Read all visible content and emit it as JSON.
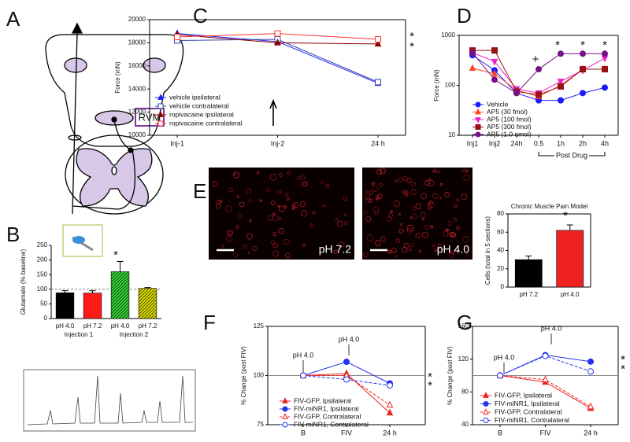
{
  "diagram": {
    "panel": "A",
    "label": "RVM"
  },
  "chart_data": [
    {
      "type": "bar",
      "panel": "B",
      "ylabel": "Glutamate (% baseline)",
      "categories": [
        "pH 4.0",
        "pH 7.2",
        "pH 4.0",
        "pH 7.2"
      ],
      "groups": [
        "Injection 1",
        "Injection 2"
      ],
      "values": [
        88,
        87,
        160,
        103
      ],
      "errors": [
        7,
        8,
        35,
        3
      ],
      "colors": [
        "#000000",
        "#ff1a1a",
        "#33cc33",
        "#d4d400"
      ],
      "hatched": [
        false,
        false,
        true,
        true
      ],
      "ylim": [
        0,
        250
      ],
      "yticks": [
        0,
        50,
        100,
        150,
        200,
        250
      ],
      "ref_line": 100,
      "annotations": [
        "*"
      ]
    },
    {
      "type": "line",
      "panel": "C",
      "ylabel": "Force (mN)",
      "categories": [
        "Inj-1",
        "Inj-2",
        "24 h"
      ],
      "ylim": [
        10000,
        20000
      ],
      "yticks": [
        10000,
        12000,
        14000,
        16000,
        18000,
        20000
      ],
      "annotations": [
        "*",
        "*"
      ],
      "series": [
        {
          "name": "vehicle ipsilateral",
          "color": "#1a1aff",
          "marker": "triangle",
          "filled": true,
          "values": [
            18800,
            18100,
            14500
          ]
        },
        {
          "name": "vehicle contralateral",
          "color": "#3344aa",
          "marker": "square",
          "filled": false,
          "values": [
            18200,
            18300,
            14600
          ]
        },
        {
          "name": "ropivacaine ipsilateral",
          "color": "#8b0000",
          "marker": "triangle",
          "filled": true,
          "values": [
            18700,
            18000,
            17900
          ]
        },
        {
          "name": "ropivacaine contralateral",
          "color": "#ff3333",
          "marker": "square",
          "filled": false,
          "values": [
            18500,
            18800,
            18300
          ]
        }
      ]
    },
    {
      "type": "line",
      "panel": "D",
      "ylabel": "Force (mN)",
      "log": true,
      "categories": [
        "Inj1",
        "Inj2",
        "24h",
        "0.5",
        "1h",
        "2h",
        "4h"
      ],
      "x_group_label": "Post Drug",
      "ylim": [
        10,
        1000
      ],
      "yticks": [
        10,
        100,
        1000
      ],
      "annotations": [
        "+",
        "*",
        "*",
        "*"
      ],
      "series": [
        {
          "name": "Vehicle",
          "color": "#1a1aff",
          "marker": "circle",
          "filled": true,
          "values": [
            400,
            200,
            70,
            50,
            50,
            70,
            90
          ]
        },
        {
          "name": "AP5 (30 fmol)",
          "color": "#ff4422",
          "marker": "triangle",
          "filled": true,
          "values": [
            220,
            170,
            80,
            60,
            100,
            210,
            210
          ]
        },
        {
          "name": "AP5 (100 fmol)",
          "color": "#ee22cc",
          "marker": "triangle-down",
          "filled": true,
          "values": [
            450,
            300,
            85,
            70,
            120,
            200,
            350
          ]
        },
        {
          "name": "AP5 (300 fmol)",
          "color": "#991111",
          "marker": "square",
          "filled": true,
          "values": [
            500,
            500,
            75,
            65,
            95,
            210,
            210
          ]
        },
        {
          "name": "AP5 (1.0 nmol)",
          "color": "#771188",
          "marker": "circle",
          "filled": true,
          "values": [
            450,
            130,
            70,
            210,
            430,
            430,
            430
          ]
        }
      ]
    },
    {
      "type": "bar",
      "panel": "E",
      "title": "Chronic Muscle Pain Model",
      "ylabel": "Cells (total in 5 sections)",
      "image_labels": [
        "pH 7.2",
        "pH 4.0"
      ],
      "categories": [
        "pH 7.2",
        "pH 4.0"
      ],
      "values": [
        30,
        62
      ],
      "errors": [
        4,
        6
      ],
      "colors": [
        "#000000",
        "#ee2222"
      ],
      "hatched": [
        false,
        false
      ],
      "ylim": [
        0,
        80
      ],
      "yticks": [
        0,
        20,
        40,
        60,
        80
      ],
      "annotations": [
        "*"
      ]
    },
    {
      "type": "line",
      "panel": "F",
      "ylabel": "% Change (post FIV)",
      "categories": [
        "B",
        "FIV",
        "24 h"
      ],
      "ylim": [
        75,
        125
      ],
      "yticks": [
        75,
        100,
        125
      ],
      "ref_line": 100,
      "annotations": [
        "pH 4.0",
        "pH 4.0",
        "*",
        "*"
      ],
      "series": [
        {
          "name": "FIV-GFP, Ipsilateral",
          "color": "#ee2222",
          "marker": "triangle",
          "filled": true,
          "values": [
            100,
            101,
            81
          ]
        },
        {
          "name": "FIV-miNR1, Ipsilateral",
          "color": "#2233ee",
          "marker": "circle",
          "filled": true,
          "values": [
            100,
            107,
            96
          ]
        },
        {
          "name": "FIV-GFP, Contralateral",
          "color": "#ee2222",
          "marker": "triangle",
          "filled": false,
          "dashed": true,
          "values": [
            100,
            100,
            85
          ]
        },
        {
          "name": "FIV-miNR1, Contralateral",
          "color": "#2233ee",
          "marker": "circle",
          "filled": false,
          "dashed": true,
          "values": [
            100,
            98,
            95
          ]
        }
      ]
    },
    {
      "type": "line",
      "panel": "G",
      "ylabel": "% Change (post FIV)",
      "categories": [
        "B",
        "FIV",
        "24 h"
      ],
      "ylim": [
        40,
        160
      ],
      "yticks": [
        40,
        80,
        120,
        160
      ],
      "ref_line": 100,
      "annotations": [
        "pH 4.0",
        "pH 4.0",
        "*",
        "*"
      ],
      "series": [
        {
          "name": "FIV-GFP, Ipsilateral",
          "color": "#ee2222",
          "marker": "triangle",
          "filled": true,
          "values": [
            100,
            92,
            60
          ]
        },
        {
          "name": "FIV-miNR1, Ipsilateral",
          "color": "#2233ee",
          "marker": "circle",
          "filled": true,
          "values": [
            100,
            125,
            117
          ]
        },
        {
          "name": "FIV-GFP, Contralateral",
          "color": "#ee2222",
          "marker": "triangle",
          "filled": false,
          "dashed": true,
          "values": [
            100,
            95,
            62
          ]
        },
        {
          "name": "FIV-miNR1, Contralateral",
          "color": "#2233ee",
          "marker": "circle",
          "filled": false,
          "dashed": true,
          "values": [
            100,
            124,
            105
          ]
        }
      ]
    }
  ]
}
